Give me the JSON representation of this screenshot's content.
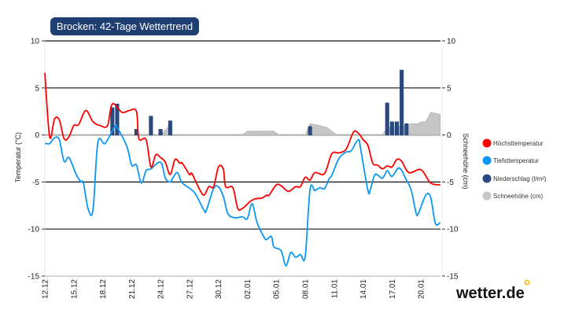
{
  "title": "Brocken: 42-Tage Wettertrend",
  "logo": {
    "text": "wetter.de",
    "dot_color": "#f5b800"
  },
  "colors": {
    "max": "#ff0000",
    "min": "#0a96f5",
    "precip": "#2a4a80",
    "snow": "#c6c6c6",
    "title_bg": "#1f3e72"
  },
  "chart_data": {
    "type": "line",
    "title": "Brocken: 42-Tage Wettertrend",
    "ylabel": "Temperatur (°C)",
    "y2label": "Schneehöhe (cm)",
    "ylim": [
      -15,
      10
    ],
    "y2lim": [
      -15,
      10
    ],
    "yticks": [
      10,
      5,
      0,
      -5,
      -10,
      -15
    ],
    "y2ticks": [
      10,
      5,
      0,
      -5,
      -10,
      -15
    ],
    "xticks": [
      "12.12",
      "15.12",
      "18.12",
      "21.12",
      "24.12",
      "27.12",
      "30.12",
      "02.01",
      "05.01",
      "08.01",
      "11.01",
      "14.01",
      "17.01",
      "20.01"
    ],
    "grid": true,
    "legend_position": "right",
    "legend": [
      "Höchsttemperatur",
      "Tiefsttemperatur",
      "Niederschlag (l/m²)",
      "Schneehöhe (cm)"
    ],
    "series": [
      {
        "name": "Höchsttemperatur",
        "type": "line",
        "points": [
          [
            "12.12 00:00",
            6.6
          ],
          [
            "12.12 12:00",
            -0.2
          ],
          [
            "13.12 00:00",
            1.7
          ],
          [
            "13.12 12:00",
            1.6
          ],
          [
            "14.12 00:00",
            -0.4
          ],
          [
            "14.12 12:00",
            -0.2
          ],
          [
            "15.12 00:00",
            1.0
          ],
          [
            "15.12 12:00",
            1.1
          ],
          [
            "16.12 06:00",
            2.6
          ],
          [
            "17.12 00:00",
            1.4
          ],
          [
            "17.12 18:00",
            1.0
          ],
          [
            "18.12 12:00",
            1.0
          ],
          [
            "19.12 00:00",
            3.3
          ],
          [
            "20.12 00:00",
            2.4
          ],
          [
            "20.12 18:00",
            2.6
          ],
          [
            "21.12 12:00",
            2.5
          ],
          [
            "21.12 18:00",
            -0.4
          ],
          [
            "22.12 12:00",
            -0.5
          ],
          [
            "23.12 00:00",
            -3.4
          ],
          [
            "23.12 12:00",
            -2.1
          ],
          [
            "24.12 00:00",
            -2.4
          ],
          [
            "24.12 12:00",
            -2.9
          ],
          [
            "25.12 00:00",
            -4.2
          ],
          [
            "25.12 12:00",
            -2.6
          ],
          [
            "26.12 00:00",
            -3.0
          ],
          [
            "26.12 06:00",
            -3.0
          ],
          [
            "27.12 00:00",
            -4.2
          ],
          [
            "27.12 06:00",
            -4.1
          ],
          [
            "28.12 00:00",
            -5.7
          ],
          [
            "28.12 12:00",
            -6.4
          ],
          [
            "29.12 00:00",
            -5.5
          ],
          [
            "29.12 12:00",
            -5.5
          ],
          [
            "30.12 00:00",
            -3.4
          ],
          [
            "30.12 12:00",
            -3.6
          ],
          [
            "30.12 18:00",
            -5.5
          ],
          [
            "31.12 12:00",
            -5.6
          ],
          [
            "01.01 00:00",
            -7.8
          ],
          [
            "01.01 12:00",
            -7.8
          ],
          [
            "02.01 06:00",
            -7.1
          ],
          [
            "02.01 18:00",
            -6.8
          ],
          [
            "03.01 12:00",
            -6.7
          ],
          [
            "04.01 00:00",
            -6.4
          ],
          [
            "04.01 06:00",
            -6.4
          ],
          [
            "05.01 00:00",
            -5.3
          ],
          [
            "05.01 12:00",
            -5.4
          ],
          [
            "06.01 06:00",
            -6.0
          ],
          [
            "07.01 00:00",
            -5.5
          ],
          [
            "07.01 12:00",
            -5.5
          ],
          [
            "08.01 00:00",
            -4.5
          ],
          [
            "08.01 12:00",
            -4.8
          ],
          [
            "09.01 00:00",
            -4.0
          ],
          [
            "10.01 00:00",
            -4.1
          ],
          [
            "10.01 18:00",
            -2.0
          ],
          [
            "11.01 12:00",
            -1.9
          ],
          [
            "12.01 06:00",
            -1.5
          ],
          [
            "13.01 00:00",
            0.3
          ],
          [
            "13.01 12:00",
            0.2
          ],
          [
            "14.01 00:00",
            -0.5
          ],
          [
            "14.01 12:00",
            -1.1
          ],
          [
            "15.01 00:00",
            -3.0
          ],
          [
            "15.01 12:00",
            -3.2
          ],
          [
            "16.01 00:00",
            -3.6
          ],
          [
            "16.01 12:00",
            -3.3
          ],
          [
            "17.01 00:00",
            -3.4
          ],
          [
            "17.01 12:00",
            -2.6
          ],
          [
            "18.01 00:00",
            -2.8
          ],
          [
            "18.01 18:00",
            -4.0
          ],
          [
            "20.01 00:00",
            -3.7
          ],
          [
            "21.01 00:00",
            -5.1
          ],
          [
            "22.01 00:00",
            -5.3
          ]
        ]
      },
      {
        "name": "Tiefsttemperatur",
        "type": "line",
        "points": [
          [
            "12.12 00:00",
            -0.9
          ],
          [
            "12.12 12:00",
            -0.9
          ],
          [
            "13.12 00:00",
            -0.3
          ],
          [
            "13.12 12:00",
            -0.5
          ],
          [
            "14.12 00:00",
            -2.8
          ],
          [
            "14.12 12:00",
            -2.4
          ],
          [
            "15.12 06:00",
            -4.2
          ],
          [
            "15.12 18:00",
            -5.0
          ],
          [
            "16.12 00:00",
            -5.1
          ],
          [
            "16.12 12:00",
            -7.9
          ],
          [
            "17.12 00:00",
            -7.9
          ],
          [
            "17.12 12:00",
            -0.8
          ],
          [
            "18.12 06:00",
            -0.9
          ],
          [
            "19.12 06:00",
            0.9
          ],
          [
            "19.12 12:00",
            0.8
          ],
          [
            "20.12 12:00",
            -1.2
          ],
          [
            "21.12 00:00",
            -3.2
          ],
          [
            "21.12 12:00",
            -3.2
          ],
          [
            "22.12 00:00",
            -5.1
          ],
          [
            "22.12 12:00",
            -3.8
          ],
          [
            "23.12 00:00",
            -3.6
          ],
          [
            "24.12 00:00",
            -2.9
          ],
          [
            "24.12 12:00",
            -4.6
          ],
          [
            "25.12 00:00",
            -5.0
          ],
          [
            "25.12 06:00",
            -4.6
          ],
          [
            "25.12 18:00",
            -4.0
          ],
          [
            "26.12 06:00",
            -5.1
          ],
          [
            "27.12 12:00",
            -6.1
          ],
          [
            "28.12 12:00",
            -8.0
          ],
          [
            "28.12 18:00",
            -8.0
          ],
          [
            "29.12 12:00",
            -5.7
          ],
          [
            "30.12 00:00",
            -5.5
          ],
          [
            "30.12 12:00",
            -6.5
          ],
          [
            "31.12 00:00",
            -8.4
          ],
          [
            "31.12 18:00",
            -8.8
          ],
          [
            "01.01 12:00",
            -8.7
          ],
          [
            "02.01 00:00",
            -8.9
          ],
          [
            "02.01 12:00",
            -7.3
          ],
          [
            "03.01 00:00",
            -9.3
          ],
          [
            "03.01 18:00",
            -10.9
          ],
          [
            "04.01 00:00",
            -11.1
          ],
          [
            "04.01 12:00",
            -10.8
          ],
          [
            "04.01 18:00",
            -11.9
          ],
          [
            "05.01 12:00",
            -12.3
          ],
          [
            "06.01 00:00",
            -13.9
          ],
          [
            "06.01 12:00",
            -12.5
          ],
          [
            "07.01 00:00",
            -13.0
          ],
          [
            "07.01 12:00",
            -12.7
          ],
          [
            "08.01 00:00",
            -12.9
          ],
          [
            "08.01 12:00",
            -5.8
          ],
          [
            "09.01 00:00",
            -5.9
          ],
          [
            "09.01 12:00",
            -5.6
          ],
          [
            "10.01 00:00",
            -5.7
          ],
          [
            "10.01 12:00",
            -4.6
          ],
          [
            "10.01 18:00",
            -4.3
          ],
          [
            "11.01 12:00",
            -2.5
          ],
          [
            "12.01 06:00",
            -1.8
          ],
          [
            "12.01 18:00",
            -1.7
          ],
          [
            "13.01 12:00",
            -0.5
          ],
          [
            "13.01 18:00",
            -1.5
          ],
          [
            "14.01 12:00",
            -5.9
          ],
          [
            "14.01 18:00",
            -5.8
          ],
          [
            "15.01 06:00",
            -4.2
          ],
          [
            "16.01 00:00",
            -4.6
          ],
          [
            "16.01 12:00",
            -3.8
          ],
          [
            "17.01 00:00",
            -4.4
          ],
          [
            "17.01 18:00",
            -3.5
          ],
          [
            "18.01 12:00",
            -4.8
          ],
          [
            "19.01 00:00",
            -5.9
          ],
          [
            "19.01 12:00",
            -8.3
          ],
          [
            "19.01 18:00",
            -8.3
          ],
          [
            "20.01 12:00",
            -6.4
          ],
          [
            "21.01 00:00",
            -6.6
          ],
          [
            "21.01 12:00",
            -9.4
          ],
          [
            "22.01 00:00",
            -9.3
          ]
        ]
      },
      {
        "name": "Niederschlag (l/m²)",
        "type": "bar",
        "points": [
          [
            "19.12 00:00",
            2.9
          ],
          [
            "19.12 12:00",
            3.3
          ],
          [
            "21.12 12:00",
            0.6
          ],
          [
            "23.12 00:00",
            2.0
          ],
          [
            "24.12 00:00",
            0.6
          ],
          [
            "25.12 00:00",
            1.5
          ],
          [
            "08.01 12:00",
            0.9
          ],
          [
            "16.01 12:00",
            3.4
          ],
          [
            "17.01 00:00",
            1.4
          ],
          [
            "17.01 12:00",
            1.4
          ],
          [
            "18.01 00:00",
            6.9
          ],
          [
            "18.01 12:00",
            1.2
          ]
        ]
      },
      {
        "name": "Schneehöhe (cm)",
        "type": "area",
        "points": [
          [
            "12.12 00:00",
            0
          ],
          [
            "24.12 00:00",
            0
          ],
          [
            "24.12 18:00",
            0.8
          ],
          [
            "25.12 06:00",
            0
          ],
          [
            "01.01 12:00",
            0
          ],
          [
            "02.01 00:00",
            0.4
          ],
          [
            "04.01 18:00",
            0.4
          ],
          [
            "05.01 06:00",
            0
          ],
          [
            "08.01 00:00",
            0
          ],
          [
            "08.01 12:00",
            1.2
          ],
          [
            "09.01 12:00",
            1.0
          ],
          [
            "10.01 06:00",
            0.8
          ],
          [
            "11.01 06:00",
            0
          ],
          [
            "16.01 00:00",
            0
          ],
          [
            "16.01 12:00",
            0.8
          ],
          [
            "18.01 12:00",
            1.0
          ],
          [
            "19.01 00:00",
            1.2
          ],
          [
            "19.01 18:00",
            1.2
          ],
          [
            "20.01 00:00",
            1.4
          ],
          [
            "20.01 12:00",
            1.4
          ],
          [
            "21.01 00:00",
            2.4
          ],
          [
            "22.01 00:00",
            2.2
          ]
        ]
      }
    ]
  }
}
